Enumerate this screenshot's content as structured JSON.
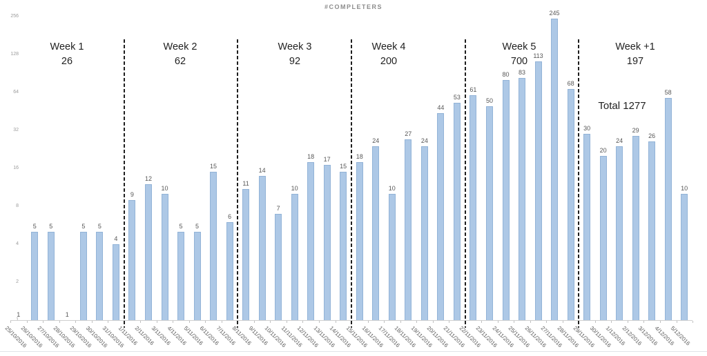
{
  "title": "#COMPLETERS",
  "chart_data": {
    "type": "bar",
    "title": "#COMPLETERS",
    "y_scale": "log2",
    "y_ticks": [
      256,
      128,
      64,
      32,
      16,
      8,
      4,
      2,
      1
    ],
    "ylim": [
      1,
      256
    ],
    "grid": false,
    "legend": "none",
    "bar_color": "#adc8e6",
    "bar_border_color": "#92b3d7",
    "categories": [
      "25/10/2016",
      "26/10/2016",
      "27/10/2016",
      "28/10/2016",
      "29/10/2016",
      "30/10/2016",
      "31/10/2016",
      "1/11/2016",
      "2/11/2016",
      "3/11/2016",
      "4/11/2016",
      "5/11/2016",
      "6/11/2016",
      "7/11/2016",
      "8/11/2016",
      "9/11/2016",
      "10/11/2016",
      "11/11/2016",
      "12/11/2016",
      "13/11/2016",
      "14/11/2016",
      "15/11/2016",
      "16/11/2016",
      "17/11/2016",
      "18/11/2016",
      "19/11/2016",
      "20/11/2016",
      "21/11/2016",
      "22/11/2016",
      "23/11/2016",
      "24/11/2016",
      "25/11/2016",
      "26/11/2016",
      "27/11/2016",
      "28/11/2016",
      "29/11/2016",
      "30/11/2016",
      "1/12/2016",
      "2/12/2016",
      "3/12/2016",
      "4/12/2016",
      "5/12/2016"
    ],
    "values": [
      1,
      5,
      5,
      1,
      5,
      5,
      4,
      9,
      12,
      10,
      5,
      5,
      15,
      6,
      11,
      14,
      7,
      10,
      18,
      17,
      15,
      18,
      24,
      10,
      27,
      24,
      44,
      53,
      61,
      50,
      80,
      83,
      113,
      245,
      68,
      30,
      20,
      24,
      29,
      26,
      58,
      10
    ],
    "separators_after_indices": [
      6,
      13,
      20,
      27,
      34
    ],
    "week_annotations": [
      {
        "label": "Week 1",
        "count": "26"
      },
      {
        "label": "Week 2",
        "count": "62"
      },
      {
        "label": "Week 3",
        "count": "92"
      },
      {
        "label": "Week 4",
        "count": "200"
      },
      {
        "label": "Week 5",
        "count": "700"
      },
      {
        "label": "Week +1",
        "count": "197"
      }
    ],
    "total_annotation": "Total 1277"
  }
}
